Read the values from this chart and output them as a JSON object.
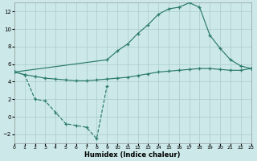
{
  "bg_color": "#cce8e8",
  "line_color": "#2a7a6a",
  "grid_color": "#aacccc",
  "xlim": [
    0,
    23
  ],
  "ylim": [
    -3,
    13
  ],
  "xticks": [
    0,
    1,
    2,
    3,
    4,
    5,
    6,
    7,
    8,
    9,
    10,
    11,
    12,
    13,
    14,
    15,
    16,
    17,
    18,
    19,
    20,
    21,
    22,
    23
  ],
  "yticks": [
    -2,
    0,
    2,
    4,
    6,
    8,
    10,
    12
  ],
  "xlabel": "Humidex (Indice chaleur)",
  "curve_dashed_x": [
    0,
    1,
    2,
    3,
    4,
    5,
    6,
    7,
    8,
    9
  ],
  "curve_dashed_y": [
    5.1,
    4.8,
    2.0,
    1.8,
    0.5,
    -0.8,
    -1.0,
    -1.2,
    -2.5,
    3.5
  ],
  "curve_low_x": [
    0,
    1,
    2,
    3,
    4,
    5,
    6,
    7,
    8,
    9,
    10,
    11,
    12,
    13,
    14,
    15,
    16,
    17,
    18,
    19,
    20,
    21,
    22,
    23
  ],
  "curve_low_y": [
    5.1,
    4.8,
    4.6,
    4.4,
    4.3,
    4.2,
    4.1,
    4.1,
    4.2,
    4.3,
    4.4,
    4.5,
    4.7,
    4.9,
    5.1,
    5.2,
    5.3,
    5.4,
    5.5,
    5.5,
    5.4,
    5.3,
    5.3,
    5.5
  ],
  "curve_high_x": [
    0,
    9,
    10,
    11,
    12,
    13,
    14,
    15,
    16,
    17,
    18,
    19,
    20,
    21,
    22,
    23
  ],
  "curve_high_y": [
    5.1,
    6.5,
    7.5,
    8.3,
    9.5,
    10.5,
    11.7,
    12.3,
    12.5,
    13.0,
    12.5,
    9.3,
    7.8,
    6.5,
    5.8,
    5.5
  ]
}
